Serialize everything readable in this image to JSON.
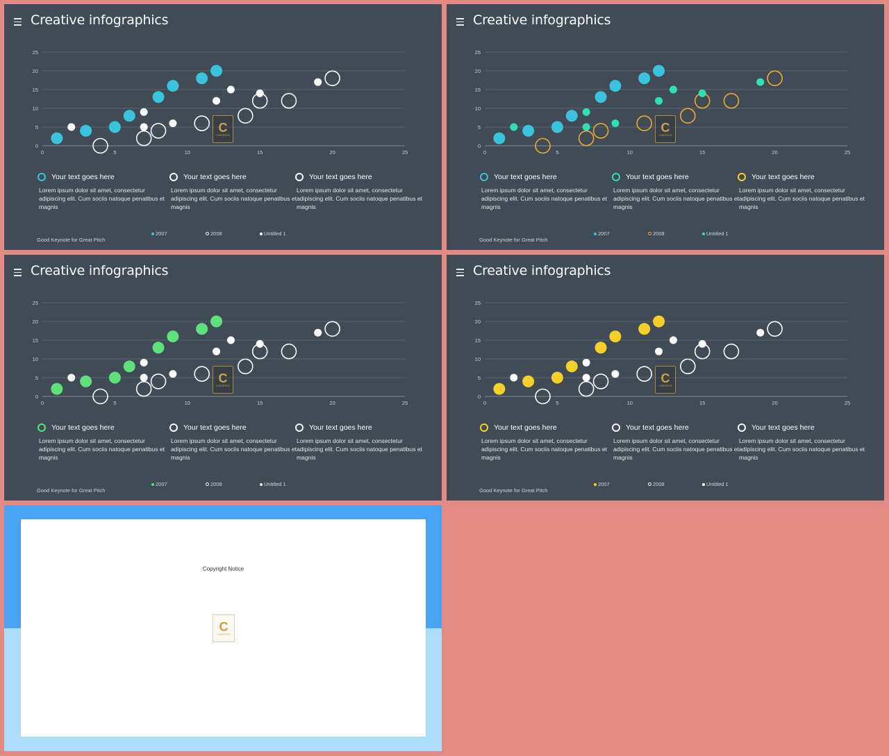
{
  "slides": [
    {
      "title": "Creative infographics",
      "footer": "Good Keynote for Great Pitch",
      "colors": {
        "series1": "#39c3dc",
        "series2": "#ffffff",
        "series3": "#ffffff"
      },
      "legend": [
        {
          "title": "Your text goes here",
          "body": "Lorem ipsum dolor sit amet, consectetur adipiscing elit. Cum sociis natoque penatibus et magnis",
          "ring_color": "#39c3dc"
        },
        {
          "title": "Your text goes here",
          "body": "Lorem ipsum dolor sit amet, consectetur adipiscing elit. Cum sociis natoque penatibus et magnis",
          "ring_color": "#ffffff"
        },
        {
          "title": "Your text goes here",
          "body": "Lorem ipsum dolor sit amet, consectetur adipiscing elit. Cum sociis natoque penatibus et magnis",
          "ring_color": "#ffffff"
        }
      ],
      "series_key": [
        "2007",
        "2008",
        "Untitled 1"
      ]
    },
    {
      "title": "Creative infographics",
      "footer": "Good Keynote for Great Pitch",
      "colors": {
        "series1": "#39c3dc",
        "series2": "#f0a83a",
        "series3": "#2fe0b0"
      },
      "legend": [
        {
          "title": "Your text goes here",
          "body": "Lorem ipsum dolor sit amet, consectetur adipiscing elit. Cum sociis natoque penatibus et magnis",
          "ring_color": "#39c3dc"
        },
        {
          "title": "Your text goes here",
          "body": "Lorem ipsum dolor sit amet, consectetur adipiscing elit. Cum sociis natoque penatibus et magnis",
          "ring_color": "#2fe0b0"
        },
        {
          "title": "Your text goes here",
          "body": "Lorem ipsum dolor sit amet, consectetur adipiscing elit. Cum sociis natoque penatibus et magnis",
          "ring_color": "#f5d033"
        }
      ],
      "series_key": [
        "2007",
        "2008",
        "Untitled 1"
      ]
    },
    {
      "title": "Creative infographics",
      "footer": "Good Keynote for Great Pitch",
      "colors": {
        "series1": "#5ee07a",
        "series2": "#ffffff",
        "series3": "#ffffff"
      },
      "legend": [
        {
          "title": "Your text goes here",
          "body": "Lorem ipsum dolor sit amet, consectetur adipiscing elit. Cum sociis natoque penatibus et magnis",
          "ring_color": "#5ee07a"
        },
        {
          "title": "Your text goes here",
          "body": "Lorem ipsum dolor sit amet, consectetur adipiscing elit. Cum sociis natoque penatibus et magnis",
          "ring_color": "#ffffff"
        },
        {
          "title": "Your text goes here",
          "body": "Lorem ipsum dolor sit amet, consectetur adipiscing elit. Cum sociis natoque penatibus et magnis",
          "ring_color": "#ffffff"
        }
      ],
      "series_key": [
        "2007",
        "2008",
        "Untitled 1"
      ]
    },
    {
      "title": "Creative infographics",
      "footer": "Good Keynote for Great Pitch",
      "colors": {
        "series1": "#f5cf2a",
        "series2": "#ffffff",
        "series3": "#ffffff"
      },
      "legend": [
        {
          "title": "Your text goes here",
          "body": "Lorem ipsum dolor sit amet, consectetur adipiscing elit. Cum sociis natoque penatibus et magnis",
          "ring_color": "#f5cf2a"
        },
        {
          "title": "Your text goes here",
          "body": "Lorem ipsum dolor sit amet, consectetur adipiscing elit. Cum sociis natoque penatibus et magnis",
          "ring_color": "#ffffff"
        },
        {
          "title": "Your text goes here",
          "body": "Lorem ipsum dolor sit amet, consectetur adipiscing elit. Cum sociis natoque penatibus et magnis",
          "ring_color": "#ffffff"
        }
      ],
      "series_key": [
        "2007",
        "2008",
        "Untitled 1"
      ]
    }
  ],
  "copyright": {
    "title": "Copyright Notice"
  },
  "chart_data": {
    "type": "scatter",
    "xlim": [
      0,
      25
    ],
    "ylim": [
      0,
      25
    ],
    "x_ticks": [
      0,
      5,
      10,
      15,
      20,
      25
    ],
    "y_ticks": [
      0,
      5,
      10,
      15,
      20,
      25
    ],
    "grid": true,
    "series": [
      {
        "name": "2007",
        "style": "filled-large",
        "points": [
          [
            1,
            2
          ],
          [
            3,
            4
          ],
          [
            5,
            5
          ],
          [
            6,
            8
          ],
          [
            8,
            13
          ],
          [
            9,
            16
          ],
          [
            11,
            18
          ],
          [
            12,
            20
          ]
        ]
      },
      {
        "name": "2008",
        "style": "hollow-large",
        "points": [
          [
            4,
            0
          ],
          [
            7,
            2
          ],
          [
            8,
            4
          ],
          [
            11,
            6
          ],
          [
            14,
            8
          ],
          [
            15,
            12
          ],
          [
            17,
            12
          ],
          [
            20,
            18
          ]
        ]
      },
      {
        "name": "Untitled 1",
        "style": "filled-small",
        "points": [
          [
            2,
            5
          ],
          [
            7,
            5
          ],
          [
            7,
            9
          ],
          [
            9,
            6
          ],
          [
            12,
            12
          ],
          [
            13,
            15
          ],
          [
            15,
            14
          ],
          [
            19,
            17
          ]
        ]
      }
    ]
  }
}
